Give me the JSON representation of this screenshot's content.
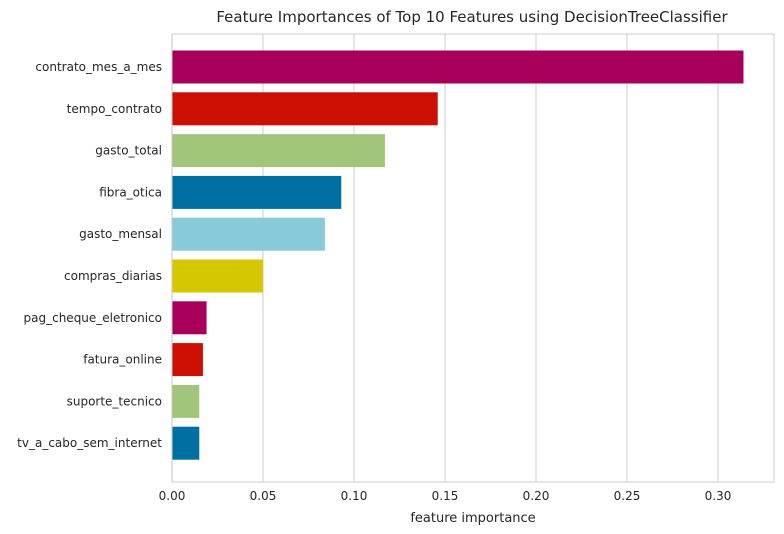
{
  "chart_data": {
    "type": "bar",
    "orientation": "horizontal",
    "title": "Feature Importances of Top 10 Features using DecisionTreeClassifier",
    "xlabel": "feature importance",
    "ylabel": "",
    "xlim": [
      0,
      0.33
    ],
    "xticks": [
      "0.00",
      "0.05",
      "0.10",
      "0.15",
      "0.20",
      "0.25",
      "0.30"
    ],
    "grid": "vertical",
    "categories": [
      "contrato_mes_a_mes",
      "tempo_contrato",
      "gasto_total",
      "fibra_otica",
      "gasto_mensal",
      "compras_diarias",
      "pag_cheque_eletronico",
      "fatura_online",
      "suporte_tecnico",
      "tv_a_cabo_sem_internet"
    ],
    "values": [
      0.314,
      0.146,
      0.117,
      0.093,
      0.084,
      0.05,
      0.019,
      0.017,
      0.015,
      0.015
    ],
    "colors": [
      "#a8005a",
      "#cc0f02",
      "#a1c57a",
      "#0070a3",
      "#88c9da",
      "#d6c800",
      "#a8005a",
      "#cc0f02",
      "#a1c57a",
      "#0070a3"
    ],
    "background": "#ffffff",
    "grid_color": "#d6d6d6",
    "spine_color": "#cccccc"
  }
}
